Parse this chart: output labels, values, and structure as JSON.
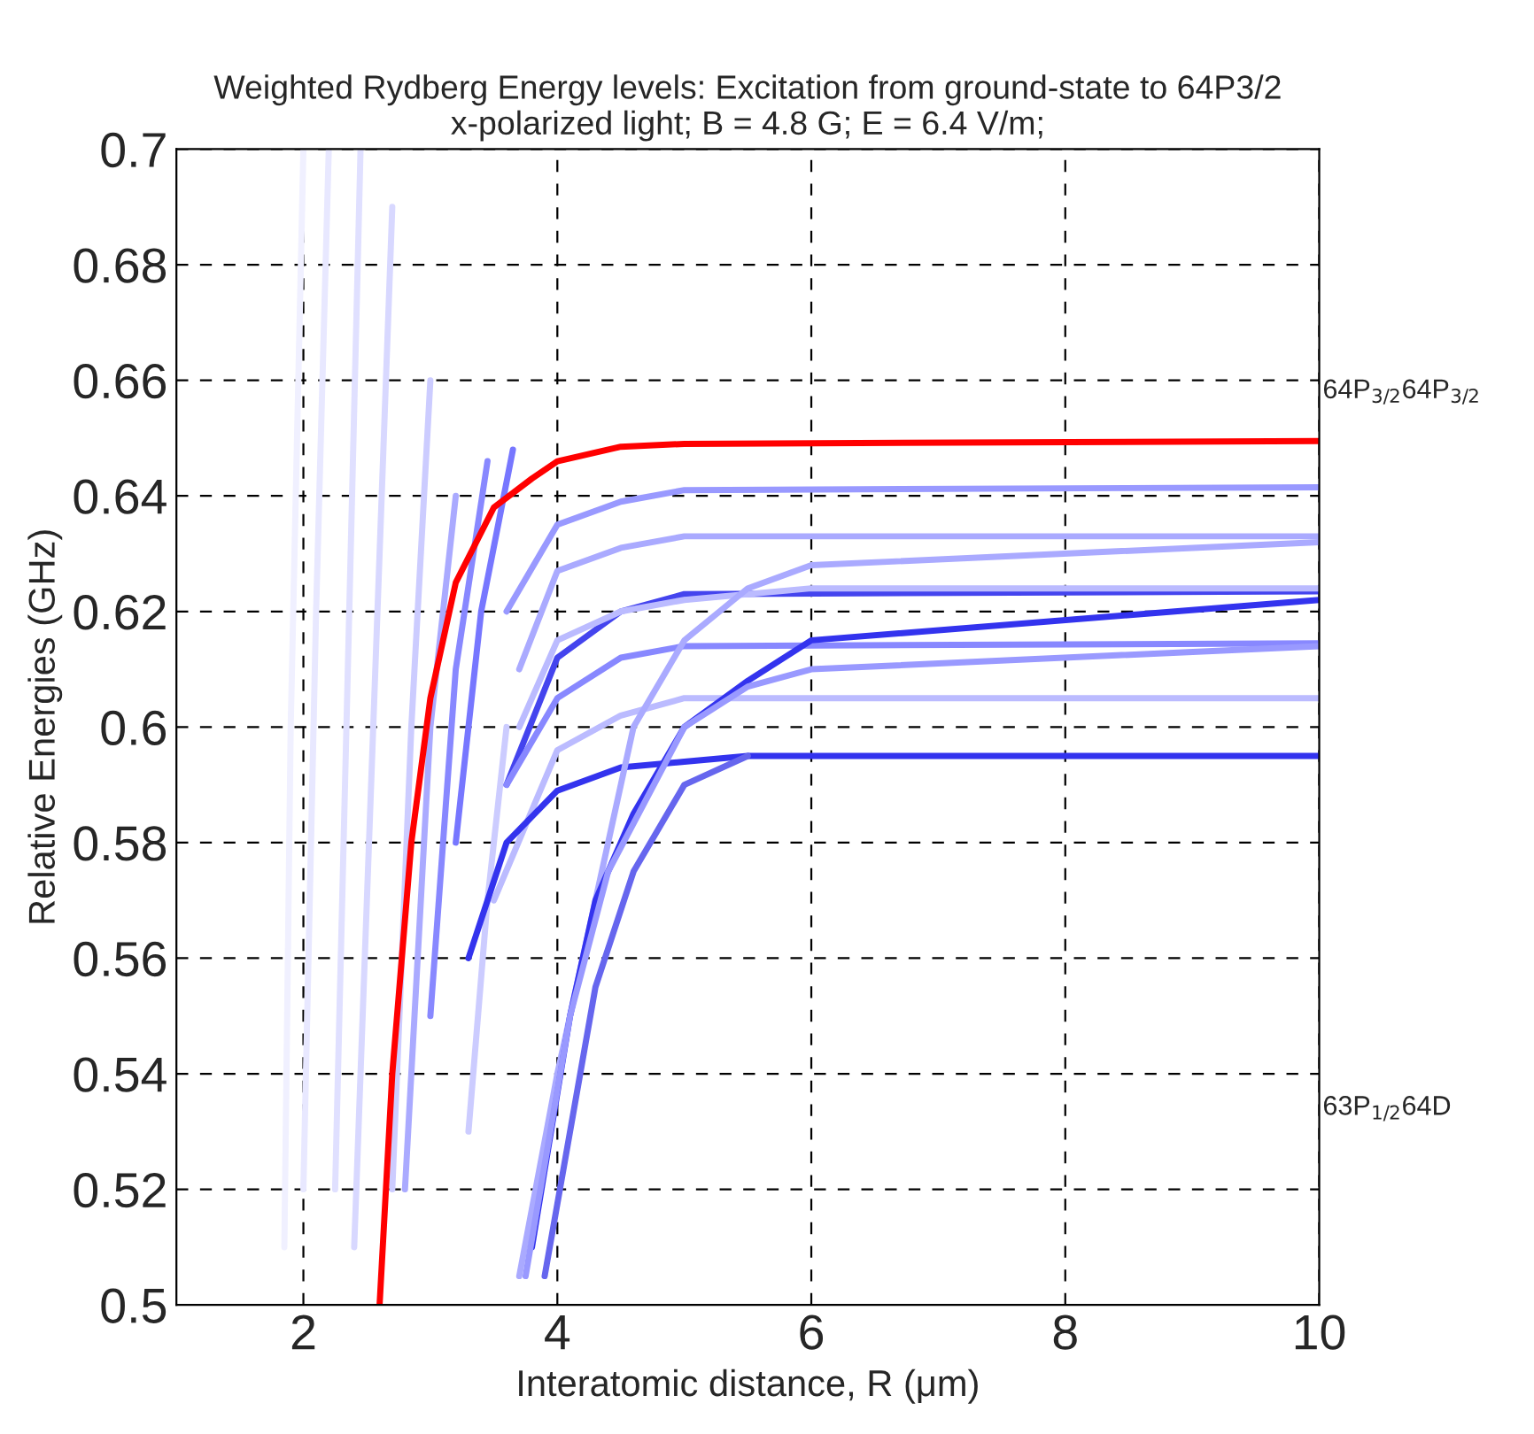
{
  "chart_data": {
    "type": "line",
    "title": "Weighted Rydberg Energy levels: Excitation from ground-state to 64P3/2",
    "subtitle": "x-polarized light; B = 4.8 G; E = 6.4 V/m;",
    "xlabel": "Interatomic distance, R (μm)",
    "ylabel": "Relative Energies (GHz)",
    "xlim": [
      1,
      10
    ],
    "xticks": [
      2,
      4,
      6,
      8,
      10
    ],
    "ylim": [
      0.5,
      0.7
    ],
    "yticks": [
      0.5,
      0.52,
      0.54,
      0.56,
      0.58,
      0.6,
      0.62,
      0.64,
      0.66,
      0.68,
      0.7
    ],
    "grid": true,
    "line_style": "solid",
    "marker": "none",
    "legend": false,
    "annotations": [
      "64P$_{3/2}$64P$_{3/2}$",
      "63P$_{1/2}$64D"
    ],
    "series": [
      {
        "color": "#f0f0ff",
        "x": [
          1.85,
          1.9,
          2.0
        ],
        "values": [
          0.51,
          0.6,
          0.7
        ]
      },
      {
        "color": "#e8e8ff",
        "x": [
          2.0,
          2.1,
          2.2
        ],
        "values": [
          0.52,
          0.62,
          0.7
        ]
      },
      {
        "color": "#e0e0ff",
        "x": [
          2.25,
          2.35,
          2.45
        ],
        "values": [
          0.52,
          0.61,
          0.7
        ]
      },
      {
        "color": "#d8d8ff",
        "x": [
          2.4,
          2.55,
          2.7
        ],
        "values": [
          0.51,
          0.6,
          0.69
        ]
      },
      {
        "color": "#ccccff",
        "x": [
          2.7,
          2.85,
          3.0
        ],
        "values": [
          0.52,
          0.6,
          0.66
        ]
      },
      {
        "color": "#aaaaff",
        "x": [
          2.8,
          3.0,
          3.2
        ],
        "values": [
          0.52,
          0.6,
          0.64
        ]
      },
      {
        "color": "#8888ff",
        "x": [
          3.0,
          3.2,
          3.45
        ],
        "values": [
          0.55,
          0.61,
          0.646
        ]
      },
      {
        "color": "#7777ff",
        "x": [
          3.2,
          3.4,
          3.65
        ],
        "values": [
          0.58,
          0.62,
          0.648
        ]
      },
      {
        "color": "#ccccff",
        "x": [
          3.3,
          3.45,
          3.6
        ],
        "values": [
          0.53,
          0.57,
          0.6
        ]
      },
      {
        "color": "#9999ff",
        "x": [
          3.6,
          4.0,
          4.5,
          5.0,
          10.0
        ],
        "values": [
          0.62,
          0.635,
          0.639,
          0.641,
          0.6415
        ]
      },
      {
        "color": "#aaaaff",
        "x": [
          3.7,
          4.0,
          4.5,
          5.0,
          10.0
        ],
        "values": [
          0.61,
          0.627,
          0.631,
          0.633,
          0.633
        ]
      },
      {
        "color": "#4444ee",
        "x": [
          3.6,
          4.0,
          4.5,
          5.0,
          10.0
        ],
        "values": [
          0.59,
          0.612,
          0.62,
          0.623,
          0.6235
        ]
      },
      {
        "color": "#bbbbff",
        "x": [
          3.7,
          4.0,
          4.5,
          5.0,
          6.0,
          10.0
        ],
        "values": [
          0.6,
          0.615,
          0.62,
          0.622,
          0.624,
          0.624
        ]
      },
      {
        "color": "#8888ff",
        "x": [
          3.6,
          4.0,
          4.5,
          5.0,
          10.0
        ],
        "values": [
          0.59,
          0.605,
          0.612,
          0.614,
          0.6145
        ]
      },
      {
        "color": "#bbbbff",
        "x": [
          3.5,
          4.0,
          4.5,
          5.0,
          10.0
        ],
        "values": [
          0.57,
          0.596,
          0.602,
          0.605,
          0.605
        ]
      },
      {
        "color": "#3333ee",
        "x": [
          3.3,
          3.6,
          4.0,
          4.5,
          5.0,
          5.5,
          10.0
        ],
        "values": [
          0.56,
          0.58,
          0.589,
          0.593,
          0.594,
          0.595,
          0.595
        ]
      },
      {
        "color": "#aaaaff",
        "x": [
          3.7,
          4.0,
          4.3,
          4.6,
          5.0,
          5.5,
          6.0,
          10.0
        ],
        "values": [
          0.505,
          0.54,
          0.57,
          0.6,
          0.615,
          0.624,
          0.628,
          0.632
        ]
      },
      {
        "color": "#3333ee",
        "x": [
          3.8,
          4.1,
          4.3,
          4.6,
          5.0,
          5.5,
          6.0,
          10.0
        ],
        "values": [
          0.51,
          0.55,
          0.57,
          0.585,
          0.6,
          0.608,
          0.615,
          0.622
        ]
      },
      {
        "color": "#9999ff",
        "x": [
          3.75,
          4.1,
          4.4,
          5.0,
          5.5,
          6.0,
          10.0
        ],
        "values": [
          0.505,
          0.55,
          0.575,
          0.6,
          0.607,
          0.61,
          0.614
        ]
      },
      {
        "color": "#6666ee",
        "x": [
          3.9,
          4.1,
          4.3,
          4.6,
          5.0,
          5.5
        ],
        "values": [
          0.505,
          0.53,
          0.555,
          0.575,
          0.59,
          0.595
        ]
      },
      {
        "color": "#ff0000",
        "x": [
          2.6,
          2.7,
          2.85,
          3.0,
          3.2,
          3.5,
          3.8,
          4.0,
          4.5,
          5.0,
          10.0
        ],
        "values": [
          0.5,
          0.54,
          0.58,
          0.605,
          0.625,
          0.638,
          0.643,
          0.646,
          0.6485,
          0.649,
          0.6495
        ]
      }
    ]
  }
}
